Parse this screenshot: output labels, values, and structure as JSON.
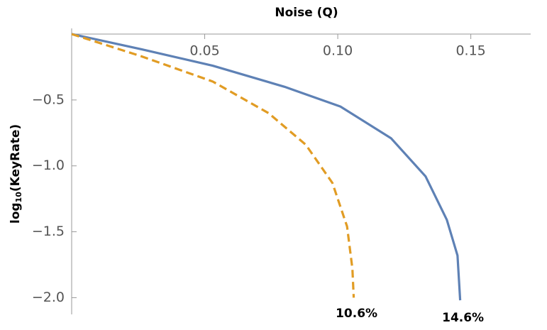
{
  "chart_data": {
    "type": "line",
    "x_label": "Noise (Q)",
    "y_label": [
      "log",
      "10",
      "(KeyRate)"
    ],
    "xlim": [
      0,
      0.1725
    ],
    "ylim": [
      -2.1,
      0
    ],
    "xticks": [
      0.05,
      {
        "value": 0.1,
        "label": "0.10"
      },
      0.15
    ],
    "yticks": [
      {
        "value": -0.5,
        "label": "−0.5"
      },
      {
        "value": -1.0,
        "label": "−1.0"
      },
      {
        "value": -1.5,
        "label": "−1.5"
      },
      {
        "value": -2.0,
        "label": "−2.0"
      }
    ],
    "series": [
      {
        "color": "#5e81b5",
        "dashed": false,
        "x": [
          0,
          0.0264,
          0.053,
          0.08,
          0.101,
          0.12,
          0.133,
          0.141,
          0.145,
          0.146
        ],
        "values": [
          0,
          -0.116,
          -0.24,
          -0.4,
          -0.55,
          -0.79,
          -1.08,
          -1.41,
          -1.68,
          -2.02
        ]
      },
      {
        "color": "#e19c24",
        "dashed": true,
        "x": [
          0,
          0.0264,
          0.053,
          0.074,
          0.088,
          0.098,
          0.1035,
          0.1055,
          0.106
        ],
        "values": [
          0,
          -0.17,
          -0.36,
          -0.6,
          -0.84,
          -1.13,
          -1.46,
          -1.78,
          -2.0
        ]
      }
    ],
    "annotations": [
      {
        "text": "10.6%",
        "x": 0.106
      },
      {
        "text": "14.6%",
        "x": 0.146
      }
    ]
  }
}
